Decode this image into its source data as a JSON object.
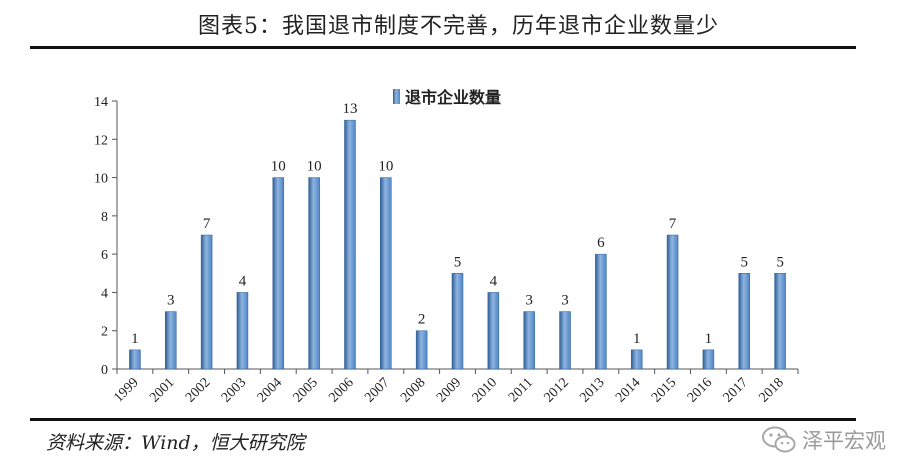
{
  "header": {
    "title": "图表5：我国退市制度不完善，历年退市企业数量少"
  },
  "footer": {
    "source": "资料来源：Wind，恒大研究院"
  },
  "watermark": {
    "text": "泽平宏观",
    "icon": "wechat-icon"
  },
  "colors": {
    "bar": "#4f86c6",
    "bar_dark": "#2f5f96",
    "bar_light": "#8fb4e0",
    "axis": "#555555"
  },
  "chart_data": {
    "type": "bar",
    "categories": [
      "1999",
      "2001",
      "2002",
      "2003",
      "2004",
      "2005",
      "2006",
      "2007",
      "2008",
      "2009",
      "2010",
      "2011",
      "2012",
      "2013",
      "2014",
      "2015",
      "2016",
      "2017",
      "2018"
    ],
    "series": [
      {
        "name": "退市企业数量",
        "values": [
          1,
          3,
          7,
          4,
          10,
          10,
          13,
          10,
          2,
          5,
          4,
          3,
          3,
          6,
          1,
          7,
          1,
          5,
          5
        ]
      }
    ],
    "yticks": [
      0,
      2,
      4,
      6,
      8,
      10,
      12,
      14
    ],
    "ylim": [
      0,
      14
    ],
    "legend_position": "top-center",
    "grid": false,
    "data_labels": true,
    "xlabel": "",
    "ylabel": ""
  }
}
